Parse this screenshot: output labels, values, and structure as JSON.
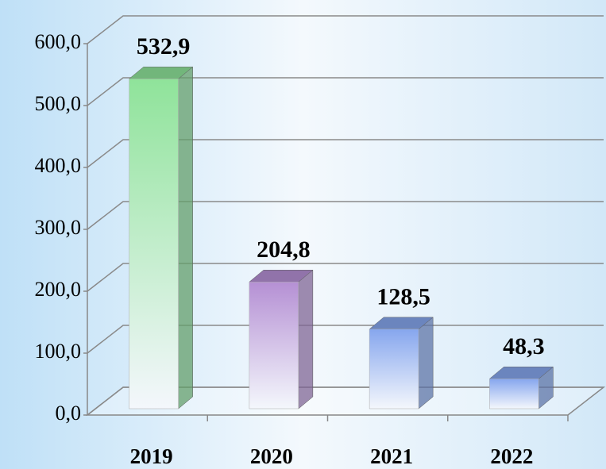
{
  "chart_data": {
    "type": "bar3d",
    "categories": [
      "2019",
      "2020",
      "2021",
      "2022"
    ],
    "values": [
      532.9,
      204.8,
      128.5,
      48.3
    ],
    "value_labels": [
      "532,9",
      "204,8",
      "128,5",
      "48,3"
    ],
    "colors": [
      "#8fe39a",
      "#b590d4",
      "#86a6ee",
      "#86a6ee"
    ],
    "ylim": [
      0,
      600
    ],
    "yticks": [
      {
        "value": 0,
        "label": "0,0"
      },
      {
        "value": 100,
        "label": "100,0"
      },
      {
        "value": 200,
        "label": "200,0"
      },
      {
        "value": 300,
        "label": "300,0"
      },
      {
        "value": 400,
        "label": "400,0"
      },
      {
        "value": 500,
        "label": "500,0"
      },
      {
        "value": 600,
        "label": "600,0"
      }
    ],
    "grid": true
  }
}
